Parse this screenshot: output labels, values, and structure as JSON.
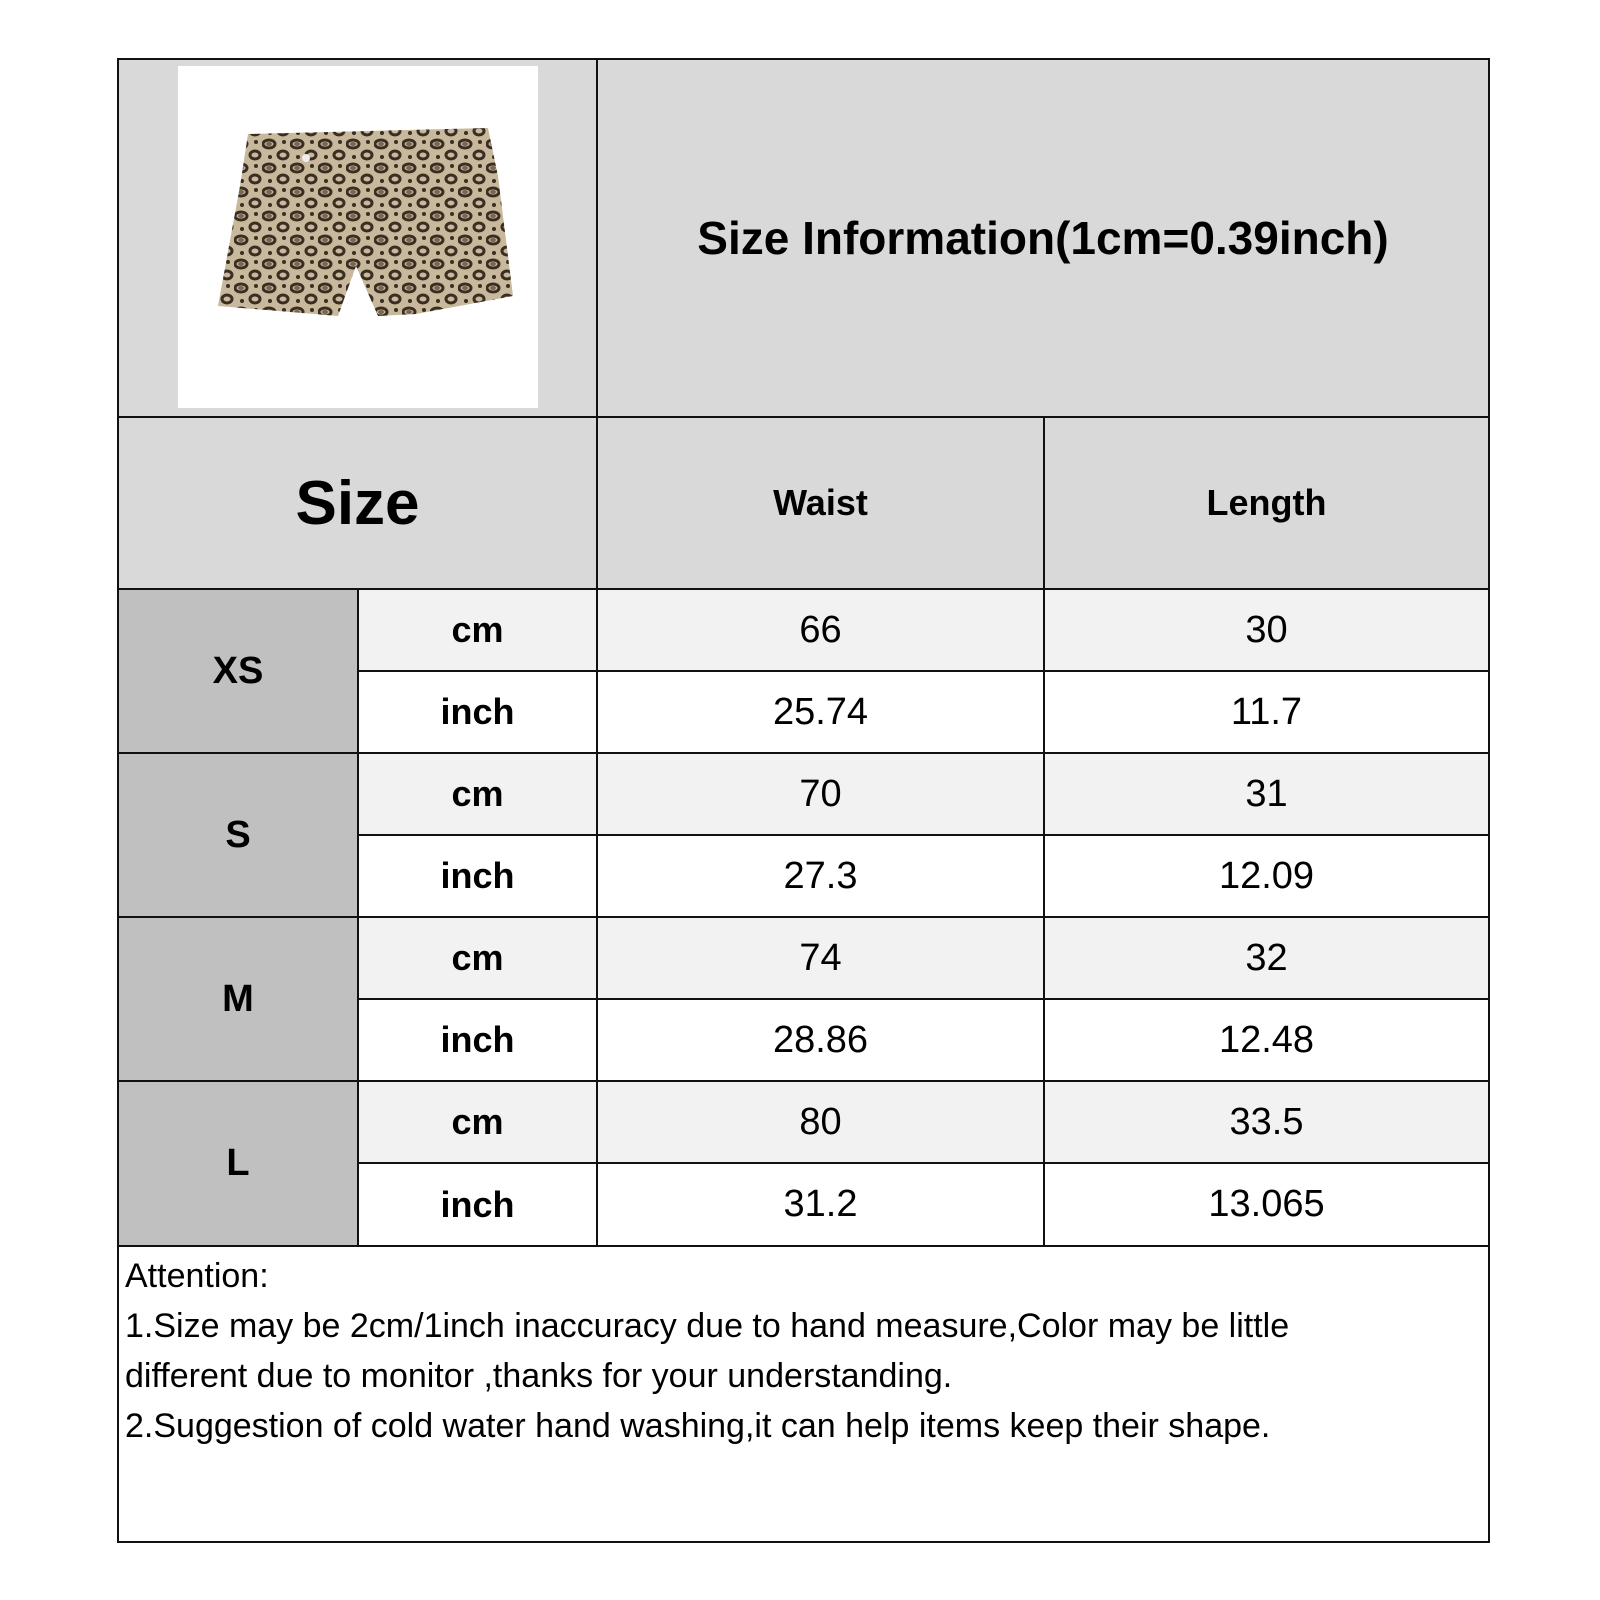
{
  "title": "Size Information(1cm=0.39inch)",
  "product_image": {
    "alt": "leopard print shorts",
    "pattern_colors": [
      "#c8b89c",
      "#3a2e22",
      "#7a6650"
    ]
  },
  "header": {
    "size": "Size",
    "waist": "Waist",
    "length": "Length"
  },
  "rows": [
    {
      "size": "XS",
      "cm": {
        "unit": "cm",
        "waist": "66",
        "length": "30"
      },
      "inch": {
        "unit": "inch",
        "waist": "25.74",
        "length": "11.7"
      }
    },
    {
      "size": "S",
      "cm": {
        "unit": "cm",
        "waist": "70",
        "length": "31"
      },
      "inch": {
        "unit": "inch",
        "waist": "27.3",
        "length": "12.09"
      }
    },
    {
      "size": "M",
      "cm": {
        "unit": "cm",
        "waist": "74",
        "length": "32"
      },
      "inch": {
        "unit": "inch",
        "waist": "28.86",
        "length": "12.48"
      }
    },
    {
      "size": "L",
      "cm": {
        "unit": "cm",
        "waist": "80",
        "length": "33.5"
      },
      "inch": {
        "unit": "inch",
        "waist": "31.2",
        "length": "13.065"
      }
    }
  ],
  "notes": {
    "heading": "Attention:",
    "line1": "1.Size may be 2cm/1inch inaccuracy due to hand measure,Color may be little",
    "line2": "different due to monitor ,thanks for your understanding.",
    "line3": "2.Suggestion of cold water hand washing,it can help items keep their shape."
  },
  "colors": {
    "header_bg": "#d9d9d9",
    "size_bg": "#c0c0c0",
    "cm_row_bg": "#f2f2f2",
    "inch_row_bg": "#ffffff",
    "border": "#111111"
  }
}
